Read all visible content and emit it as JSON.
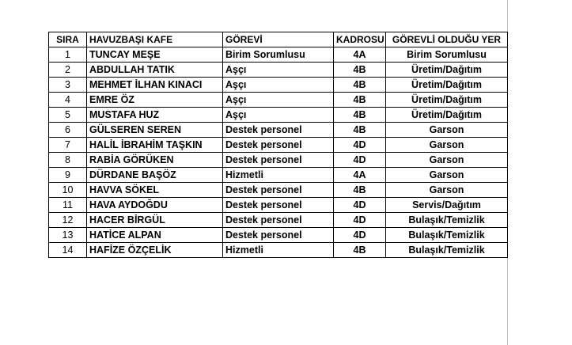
{
  "table": {
    "header": [
      "SIRA",
      "HAVUZBAŞI KAFE",
      "GÖREVİ",
      "KADROSU",
      "GÖREVLİ OLDUĞU YER"
    ],
    "rows": [
      [
        "1",
        "TUNCAY MEŞE",
        "Birim Sorumlusu",
        "4A",
        "Birim Sorumlusu"
      ],
      [
        "2",
        "ABDULLAH TATIK",
        "Aşçı",
        "4B",
        "Üretim/Dağıtım"
      ],
      [
        "3",
        "MEHMET İLHAN KINACI",
        "Aşçı",
        "4B",
        "Üretim/Dağıtım"
      ],
      [
        "4",
        "EMRE ÖZ",
        "Aşçı",
        "4B",
        "Üretim/Dağıtım"
      ],
      [
        "5",
        "MUSTAFA HUZ",
        "Aşçı",
        "4B",
        "Üretim/Dağıtım"
      ],
      [
        "6",
        "GÜLSEREN SEREN",
        "Destek personel",
        "4B",
        "Garson"
      ],
      [
        "7",
        "HALİL İBRAHİM TAŞKIN",
        "Destek personel",
        "4D",
        "Garson"
      ],
      [
        "8",
        "RABİA GÖRÜKEN",
        "Destek personel",
        "4D",
        "Garson"
      ],
      [
        "9",
        "DÜRDANE BAŞÖZ",
        "Hizmetli",
        "4A",
        "Garson"
      ],
      [
        "10",
        "HAVVA SÖKEL",
        "Destek personel",
        "4B",
        "Garson"
      ],
      [
        "11",
        "HAVA AYDOĞDU",
        "Destek personel",
        "4D",
        "Servis/Dağıtım"
      ],
      [
        "12",
        "HACER BİRGÜL",
        "Destek personel",
        "4D",
        "Bulaşık/Temizlik"
      ],
      [
        "13",
        "HATİCE ALPAN",
        "Destek personel",
        "4D",
        "Bulaşık/Temizlik"
      ],
      [
        "14",
        "HAFİZE ÖZÇELİK",
        "Hizmetli",
        "4B",
        "Bulaşık/Temizlik"
      ]
    ]
  }
}
